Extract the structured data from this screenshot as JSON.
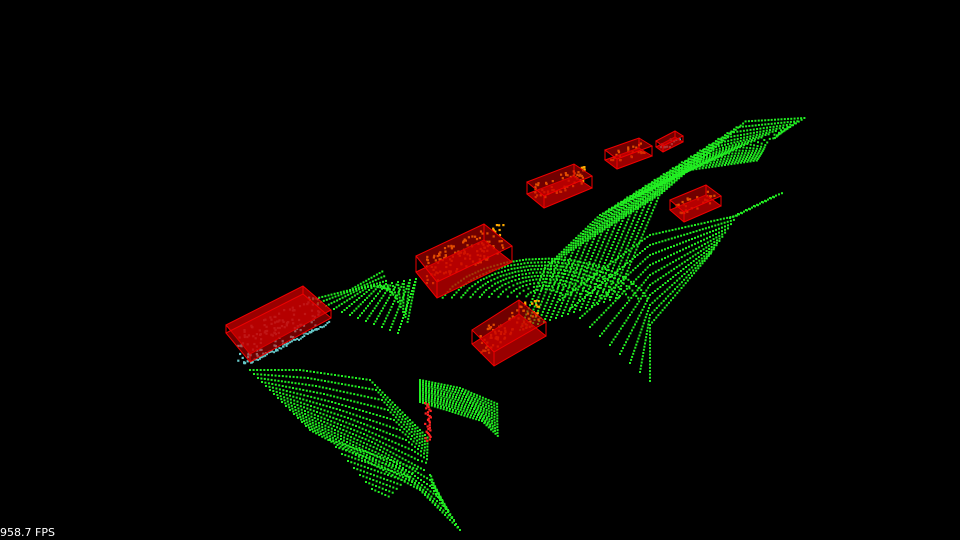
{
  "viewer": {
    "fps_text": "958.7 FPS"
  },
  "colors": {
    "background": "#000000",
    "ground_points": "#22ee22",
    "object_points": "#ffaa00",
    "vehicle_points_alt": "#66c8c8",
    "bounding_box": "#ee0000",
    "bounding_box_fill": "#cc0000",
    "pole": "#ff2222"
  },
  "scene": {
    "detected_objects": [
      {
        "class_color": "vehicle_points_alt"
      },
      {
        "class_color": "object_points"
      },
      {
        "class_color": "object_points"
      },
      {
        "class_color": "object_points"
      },
      {
        "class_color": "object_points"
      },
      {
        "class_color": "object_points"
      },
      {
        "class_color": "vehicle_points_alt"
      }
    ]
  }
}
